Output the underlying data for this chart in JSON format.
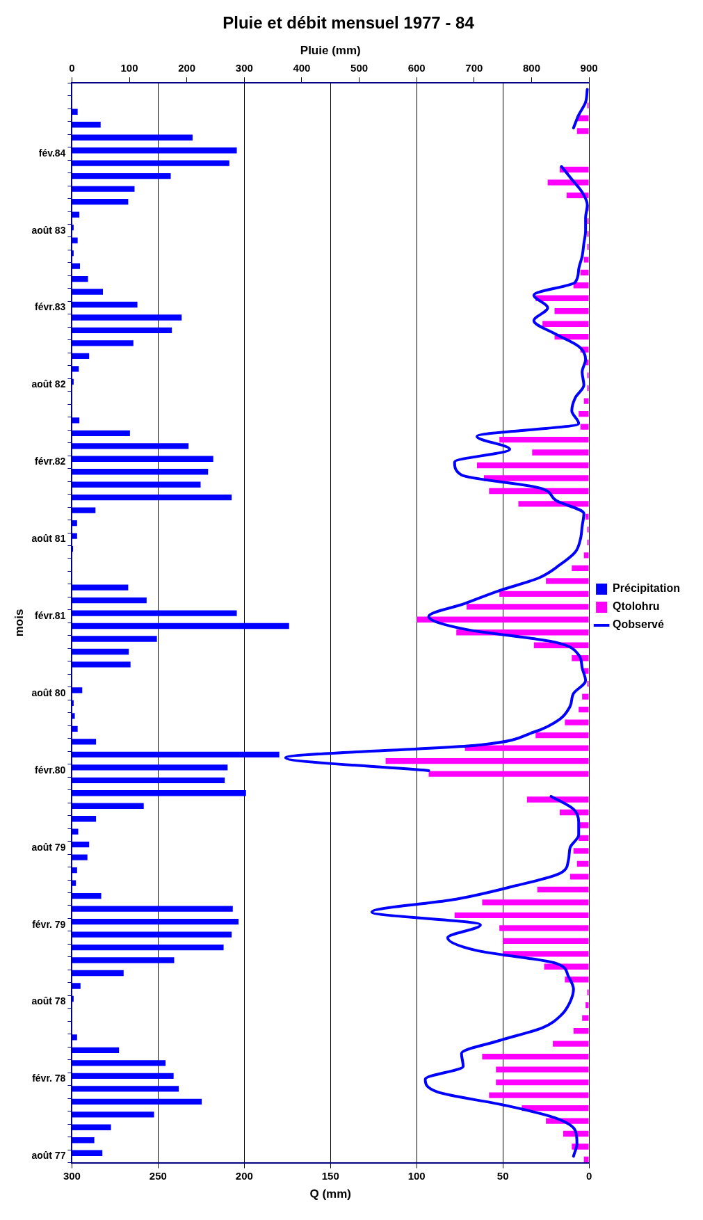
{
  "chart_data": {
    "type": "bar",
    "orientation": "horizontal",
    "title": "Pluie et débit mensuel 1977 - 84",
    "xlabel": "Q (mm)",
    "x2label": "Pluie (mm)",
    "ylabel": "mois",
    "categories": [
      null,
      null,
      null,
      null,
      null,
      "fév.84",
      null,
      null,
      null,
      null,
      null,
      "août 83",
      null,
      null,
      null,
      null,
      null,
      "févr.83",
      null,
      null,
      null,
      null,
      null,
      "août 82",
      null,
      null,
      null,
      null,
      null,
      "févr.82",
      null,
      null,
      null,
      null,
      null,
      "août 81",
      null,
      null,
      null,
      null,
      null,
      "févr.81",
      null,
      null,
      null,
      null,
      null,
      "août 80",
      null,
      null,
      null,
      null,
      null,
      "févr.80",
      null,
      null,
      null,
      null,
      null,
      "août 79",
      null,
      null,
      null,
      null,
      null,
      "févr. 79",
      null,
      null,
      null,
      null,
      null,
      "août 78",
      null,
      null,
      null,
      null,
      null,
      "févr. 78",
      null,
      null,
      null,
      null,
      null,
      "août 77"
    ],
    "series": [
      {
        "name": "Précipitation",
        "color": "#0000ff",
        "axis": "x2",
        "values": [
          0,
          0,
          10,
          50,
          210,
          287,
          274,
          172,
          109,
          98,
          13,
          3,
          10,
          3,
          14,
          28,
          54,
          114,
          191,
          174,
          107,
          30,
          12,
          3,
          0,
          0,
          13,
          101,
          203,
          246,
          237,
          224,
          278,
          41,
          9,
          9,
          2,
          0,
          0,
          98,
          130,
          287,
          378,
          148,
          99,
          102,
          0,
          18,
          3,
          5,
          10,
          42,
          361,
          271,
          266,
          303,
          125,
          42,
          11,
          30,
          27,
          9,
          7,
          51,
          280,
          290,
          278,
          264,
          178,
          90,
          15,
          3,
          0,
          0,
          9,
          82,
          163,
          177,
          186,
          226,
          143,
          68,
          39,
          53
        ]
      },
      {
        "name": "Qtolohru",
        "color": "#ff00ff",
        "values": [
          0,
          1,
          7,
          7,
          null,
          null,
          17,
          24,
          13,
          1,
          1,
          1,
          1,
          3,
          5,
          9,
          31,
          20,
          27,
          20,
          5,
          2,
          1,
          1,
          3,
          6,
          5,
          52,
          33,
          65,
          61,
          58,
          41,
          2,
          1,
          1,
          3,
          10,
          25,
          52,
          71,
          100,
          77,
          32,
          10,
          3,
          1,
          4,
          6,
          14,
          31,
          72,
          118,
          93,
          null,
          36,
          17,
          6,
          6,
          9,
          7,
          11,
          30,
          62,
          78,
          52,
          50,
          50,
          26,
          14,
          1,
          2,
          4,
          9,
          21,
          62,
          54,
          54,
          58,
          39,
          25,
          15,
          10,
          3
        ]
      },
      {
        "name": "Qobservé",
        "type": "line",
        "color": "#0000ff",
        "values": [
          1,
          2,
          6,
          9,
          null,
          null,
          16,
          10,
          4,
          1,
          2,
          2,
          3,
          4,
          6,
          8,
          32,
          24,
          32,
          20,
          6,
          2,
          4,
          3,
          8,
          10,
          6,
          65,
          46,
          78,
          74,
          29,
          19,
          3,
          4,
          5,
          8,
          17,
          29,
          52,
          72,
          93,
          72,
          20,
          6,
          4,
          2,
          9,
          11,
          17,
          32,
          63,
          176,
          93,
          null,
          22,
          9,
          6,
          6,
          11,
          12,
          17,
          44,
          77,
          126,
          63,
          82,
          65,
          19,
          12,
          9,
          11,
          16,
          27,
          52,
          74,
          73,
          95,
          88,
          50,
          20,
          8,
          7,
          9
        ]
      }
    ],
    "xlim": [
      300,
      0
    ],
    "xticks": [
      300,
      250,
      200,
      150,
      100,
      50,
      0
    ],
    "x2lim": [
      0,
      900
    ],
    "x2ticks": [
      0,
      100,
      200,
      300,
      400,
      500,
      600,
      700,
      800,
      900
    ],
    "grid": "x",
    "legend": "right"
  }
}
